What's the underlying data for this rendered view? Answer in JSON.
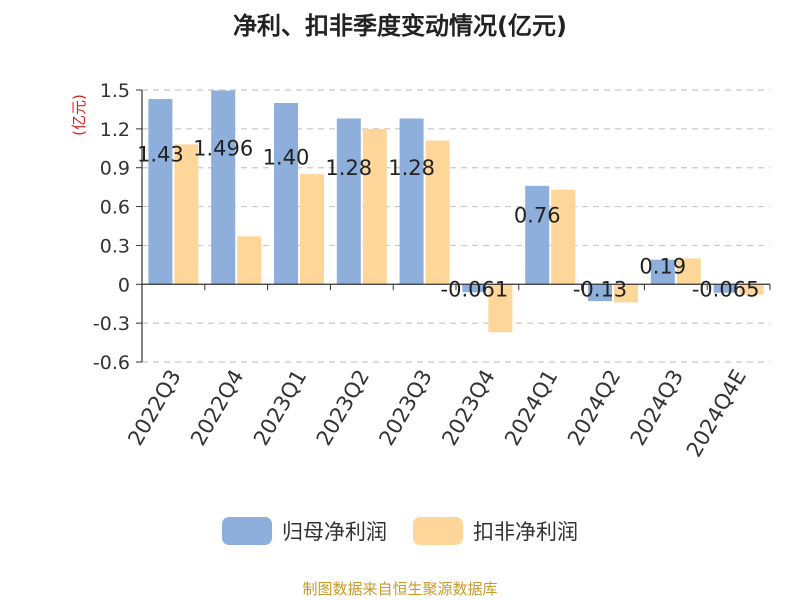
{
  "chart_data": {
    "type": "bar",
    "title": "净利、扣非季度变动情况(亿元)",
    "ylabel": "(亿元)",
    "xlabel": "",
    "categories": [
      "2022Q3",
      "2022Q4",
      "2023Q1",
      "2023Q2",
      "2023Q3",
      "2023Q4",
      "2024Q1",
      "2024Q2",
      "2024Q3",
      "2024Q4E"
    ],
    "ylim": [
      -0.6,
      1.5
    ],
    "yticks": [
      1.5,
      1.2,
      0.9,
      0.6,
      0.3,
      0,
      -0.3,
      -0.6
    ],
    "ytick_labels": [
      "1.5",
      "1.2",
      "0.9",
      "0.6",
      "0.3",
      "0",
      "-0.3",
      "-0.6"
    ],
    "grid": true,
    "legend_position": "bottom-center",
    "series": [
      {
        "name": "归母净利润",
        "color": "#8eaedb",
        "values": [
          1.43,
          1.496,
          1.4,
          1.28,
          1.28,
          -0.061,
          0.76,
          -0.13,
          0.19,
          -0.065
        ],
        "labels": [
          "1.43",
          "1.496",
          "1.40",
          "1.28",
          "1.28",
          "-0.061",
          "0.76",
          "-0.13",
          "0.19",
          "-0.065"
        ]
      },
      {
        "name": "扣非净利润",
        "color": "#ffd699",
        "values": [
          1.08,
          0.37,
          0.85,
          1.2,
          1.11,
          -0.37,
          0.73,
          -0.14,
          0.2,
          -0.08
        ]
      }
    ]
  },
  "footer": {
    "source": "制图数据来自恒生聚源数据库"
  }
}
